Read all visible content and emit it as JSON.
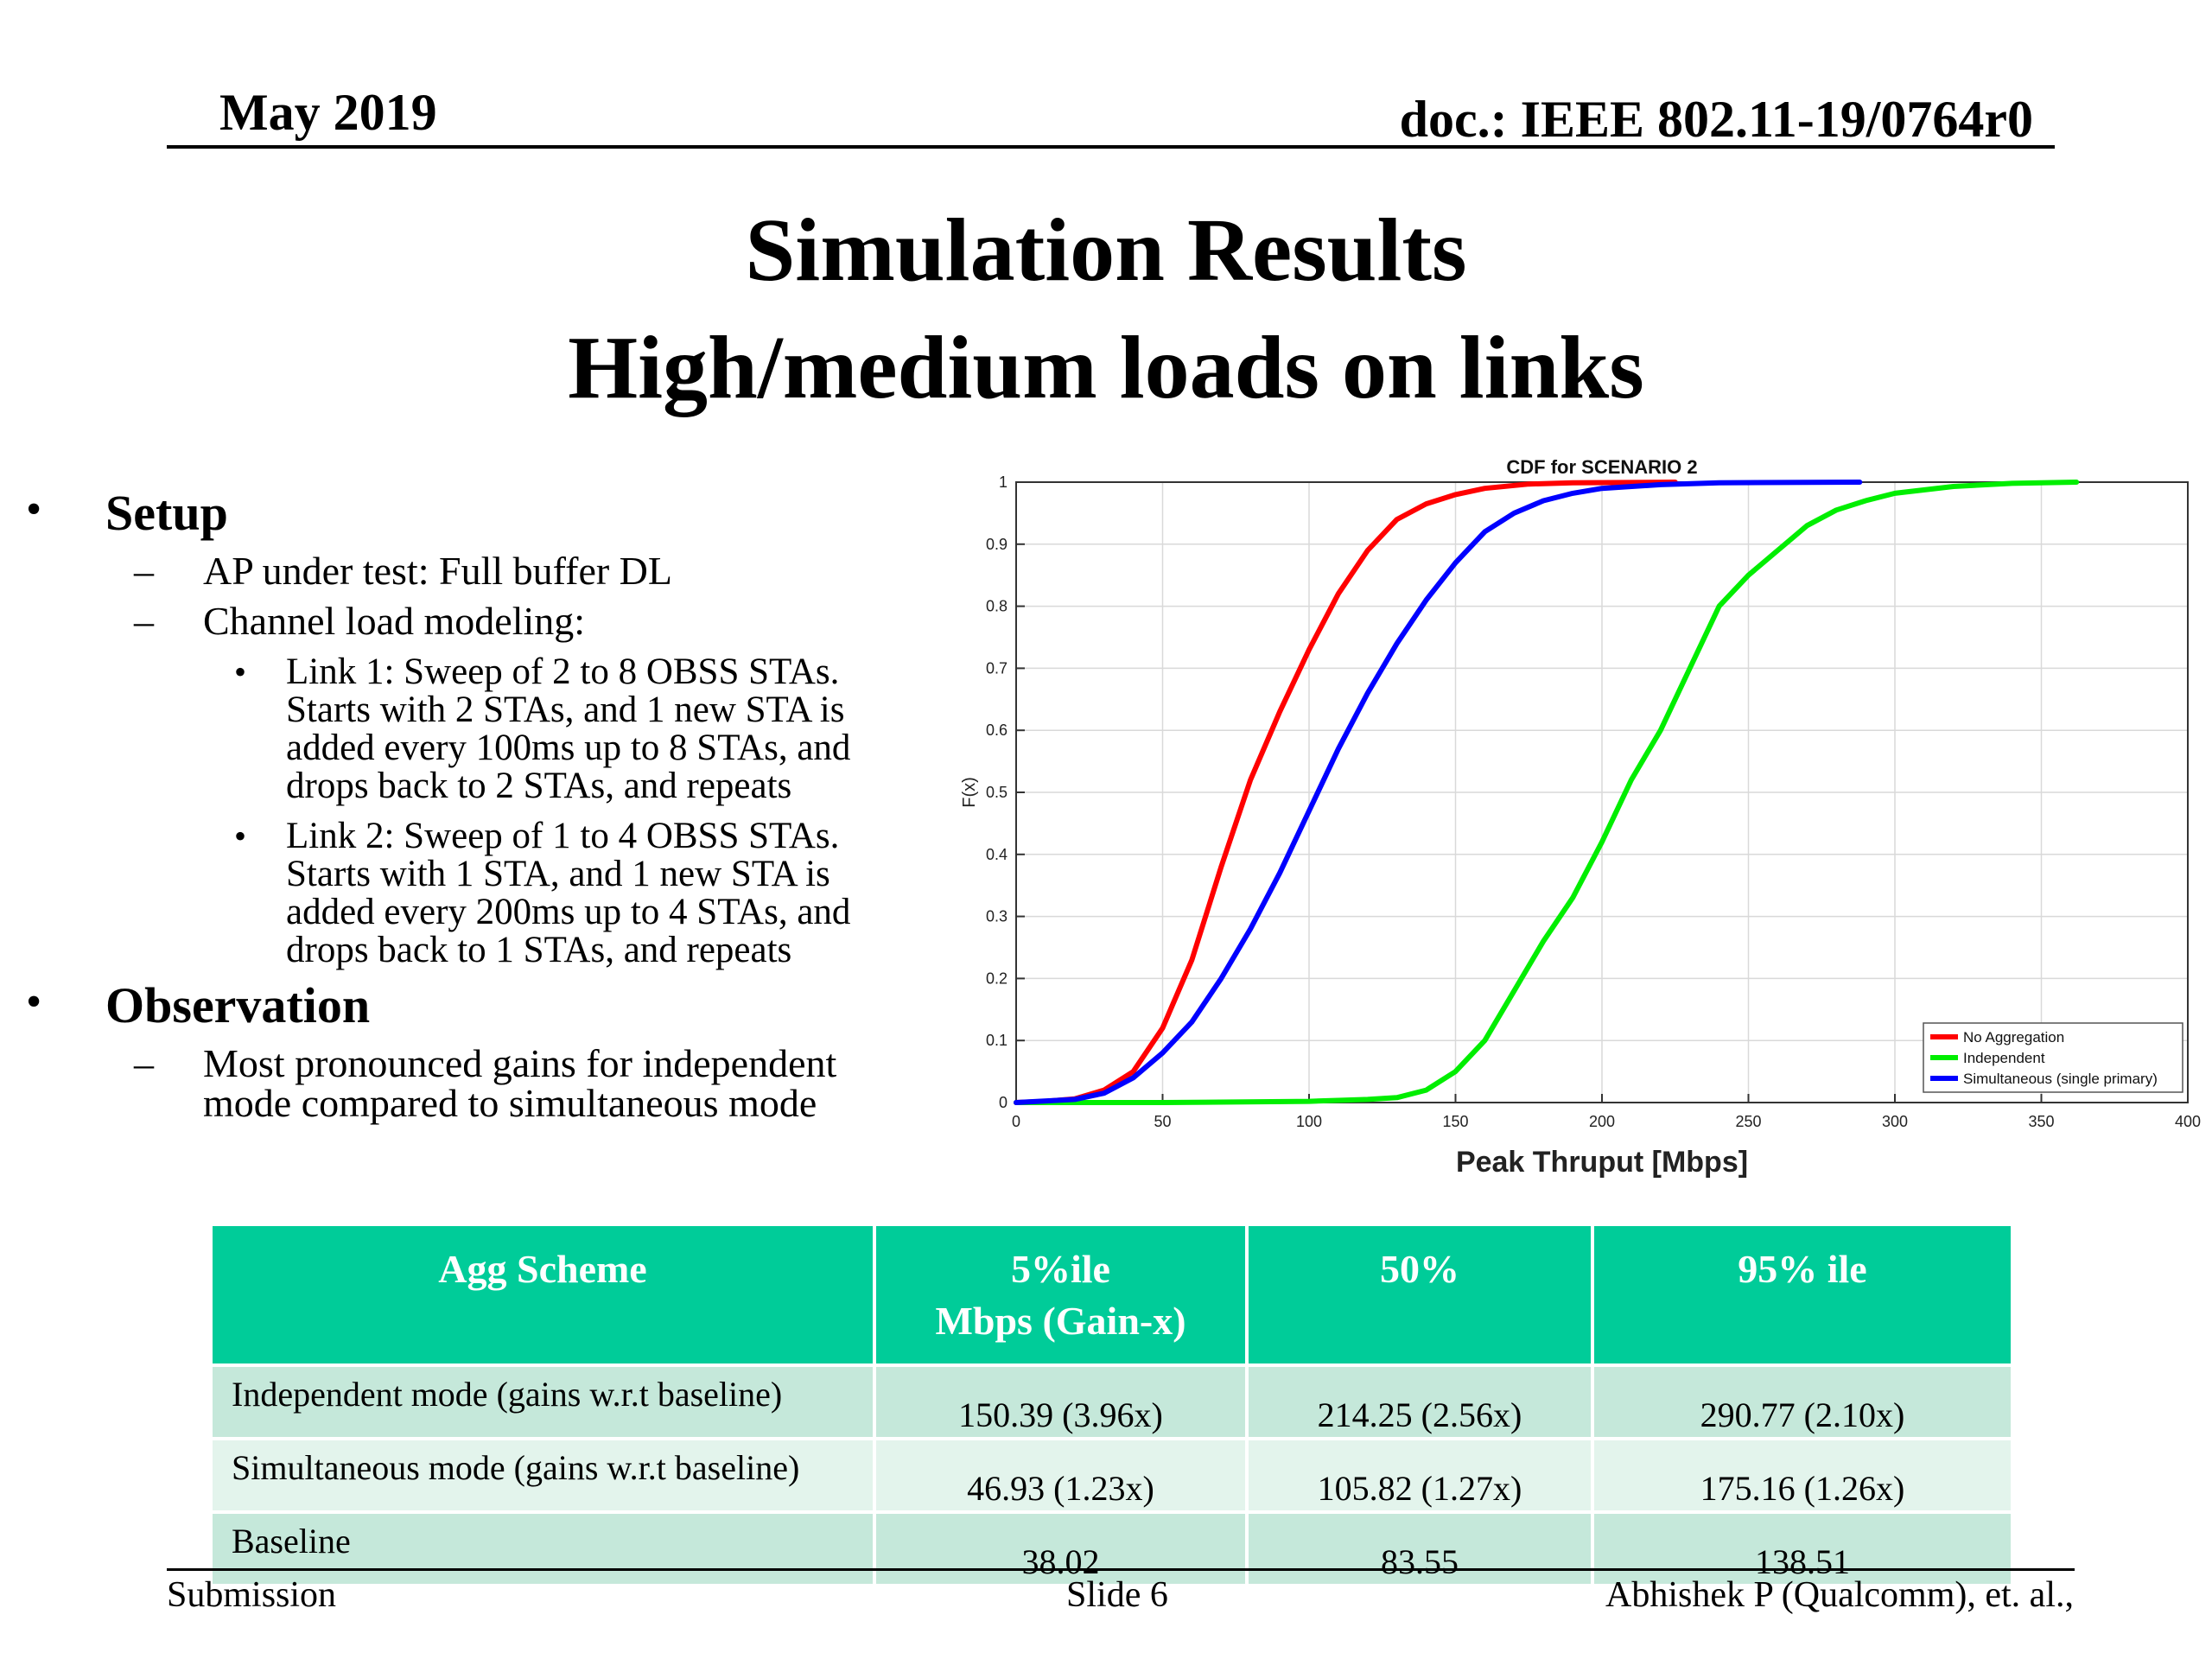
{
  "header": {
    "date": "May 2019",
    "doc": "doc.: IEEE 802.11-19/0764r0"
  },
  "title": {
    "line1": "Simulation Results",
    "line2": "High/medium loads on links"
  },
  "body": {
    "setup_heading": "Setup",
    "setup_items": [
      "AP under test: Full buffer DL",
      "Channel load modeling:"
    ],
    "links": [
      [
        "Link 1: Sweep of 2 to 8 OBSS STAs.",
        "Starts with 2 STAs, and 1 new STA is",
        "added every 100ms up to 8 STAs, and",
        "drops back to 2 STAs, and repeats"
      ],
      [
        "Link 2: Sweep of 1 to 4 OBSS STAs.",
        "Starts with 1 STA, and 1 new STA is",
        "added every 200ms up to 4 STAs, and",
        "drops back to 1 STAs, and repeats"
      ]
    ],
    "observation_heading": "Observation",
    "observation_lines": [
      "Most pronounced gains for independent",
      "mode compared to simultaneous mode"
    ],
    "bullet_glyph": "•",
    "dash_glyph": "–"
  },
  "chart_data": {
    "type": "line",
    "title": "CDF for SCENARIO 2",
    "xlabel": "Peak Thruput [Mbps]",
    "ylabel": "F(x)",
    "xlim": [
      0,
      400
    ],
    "ylim": [
      0,
      1
    ],
    "xticks": [
      0,
      50,
      100,
      150,
      200,
      250,
      300,
      350,
      400
    ],
    "yticks": [
      0,
      0.1,
      0.2,
      0.3,
      0.4,
      0.5,
      0.6,
      0.7,
      0.8,
      0.9,
      1
    ],
    "grid": true,
    "legend_position": "bottom-right",
    "series": [
      {
        "name": "No Aggregation",
        "color": "#ff0000",
        "points": [
          [
            0,
            0
          ],
          [
            10,
            0.002
          ],
          [
            20,
            0.006
          ],
          [
            30,
            0.02
          ],
          [
            40,
            0.05
          ],
          [
            50,
            0.12
          ],
          [
            60,
            0.23
          ],
          [
            70,
            0.38
          ],
          [
            80,
            0.52
          ],
          [
            90,
            0.63
          ],
          [
            100,
            0.73
          ],
          [
            110,
            0.82
          ],
          [
            120,
            0.89
          ],
          [
            130,
            0.94
          ],
          [
            140,
            0.965
          ],
          [
            150,
            0.98
          ],
          [
            160,
            0.99
          ],
          [
            175,
            0.997
          ],
          [
            190,
            0.999
          ],
          [
            225,
            1
          ]
        ]
      },
      {
        "name": "Independent",
        "color": "#00ee00",
        "points": [
          [
            0,
            0
          ],
          [
            50,
            0
          ],
          [
            100,
            0.002
          ],
          [
            120,
            0.005
          ],
          [
            130,
            0.008
          ],
          [
            140,
            0.02
          ],
          [
            150,
            0.05
          ],
          [
            160,
            0.1
          ],
          [
            170,
            0.18
          ],
          [
            180,
            0.26
          ],
          [
            190,
            0.33
          ],
          [
            200,
            0.42
          ],
          [
            210,
            0.52
          ],
          [
            220,
            0.6
          ],
          [
            230,
            0.7
          ],
          [
            240,
            0.8
          ],
          [
            250,
            0.85
          ],
          [
            260,
            0.89
          ],
          [
            270,
            0.93
          ],
          [
            280,
            0.955
          ],
          [
            290,
            0.97
          ],
          [
            300,
            0.982
          ],
          [
            320,
            0.993
          ],
          [
            340,
            0.998
          ],
          [
            362,
            1
          ]
        ]
      },
      {
        "name": "Simultaneous (single primary)",
        "color": "#0000ff",
        "points": [
          [
            0,
            0
          ],
          [
            20,
            0.005
          ],
          [
            30,
            0.015
          ],
          [
            40,
            0.04
          ],
          [
            50,
            0.08
          ],
          [
            60,
            0.13
          ],
          [
            70,
            0.2
          ],
          [
            80,
            0.28
          ],
          [
            90,
            0.37
          ],
          [
            100,
            0.47
          ],
          [
            110,
            0.57
          ],
          [
            120,
            0.66
          ],
          [
            130,
            0.74
          ],
          [
            140,
            0.81
          ],
          [
            150,
            0.87
          ],
          [
            160,
            0.92
          ],
          [
            170,
            0.95
          ],
          [
            180,
            0.97
          ],
          [
            190,
            0.982
          ],
          [
            200,
            0.99
          ],
          [
            220,
            0.996
          ],
          [
            240,
            0.999
          ],
          [
            288,
            1
          ]
        ]
      }
    ]
  },
  "table": {
    "headers": [
      [
        "Agg Scheme"
      ],
      [
        "5%ile",
        "Mbps (Gain-x)"
      ],
      [
        "50%"
      ],
      [
        "95% ile"
      ]
    ],
    "rows": [
      [
        "Independent mode (gains w.r.t baseline)",
        "150.39 (3.96x)",
        "214.25 (2.56x)",
        "290.77 (2.10x)"
      ],
      [
        "Simultaneous mode (gains w.r.t baseline)",
        "46.93 (1.23x)",
        "105.82 (1.27x)",
        "175.16 (1.26x)"
      ],
      [
        "Baseline",
        "38.02",
        "83.55",
        "138.51"
      ]
    ]
  },
  "footer": {
    "left": "Submission",
    "center": "Slide 6",
    "right": "Abhishek P (Qualcomm), et. al.,"
  }
}
